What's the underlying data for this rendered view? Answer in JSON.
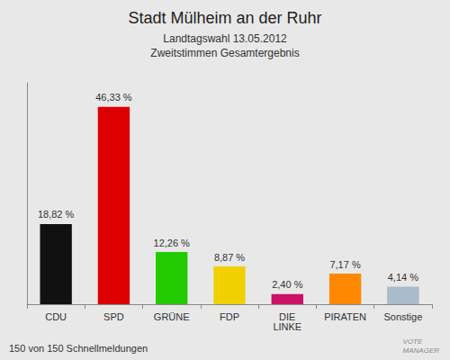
{
  "chart_data": {
    "type": "bar",
    "title": "Stadt Mülheim an der Ruhr",
    "subtitle": [
      "Landtagswahl 13.05.2012",
      "Zweitstimmen Gesamtergebnis"
    ],
    "annotations": [
      "150 von 150 Schnellmeldungen",
      "VOTE\nMANAGER"
    ],
    "categories": [
      "CDU",
      "SPD",
      "GRÜNE",
      "FDP",
      "DIE\nLINKE",
      "PIRATEN",
      "Sonstige"
    ],
    "values": [
      18.82,
      46.33,
      12.26,
      8.87,
      2.4,
      7.17,
      4.14
    ],
    "value_labels": [
      "18,82 %",
      "46,33 %",
      "12,26 %",
      "8,87 %",
      "2,40 %",
      "7,17 %",
      "4,14 %"
    ],
    "colors": [
      "#111111",
      "#dd0000",
      "#22cc00",
      "#f0d000",
      "#cc1166",
      "#ff8800",
      "#aabbcc"
    ],
    "ylim": [
      0,
      52
    ],
    "data_labels": true,
    "tick_labels": "x",
    "grid": false
  }
}
